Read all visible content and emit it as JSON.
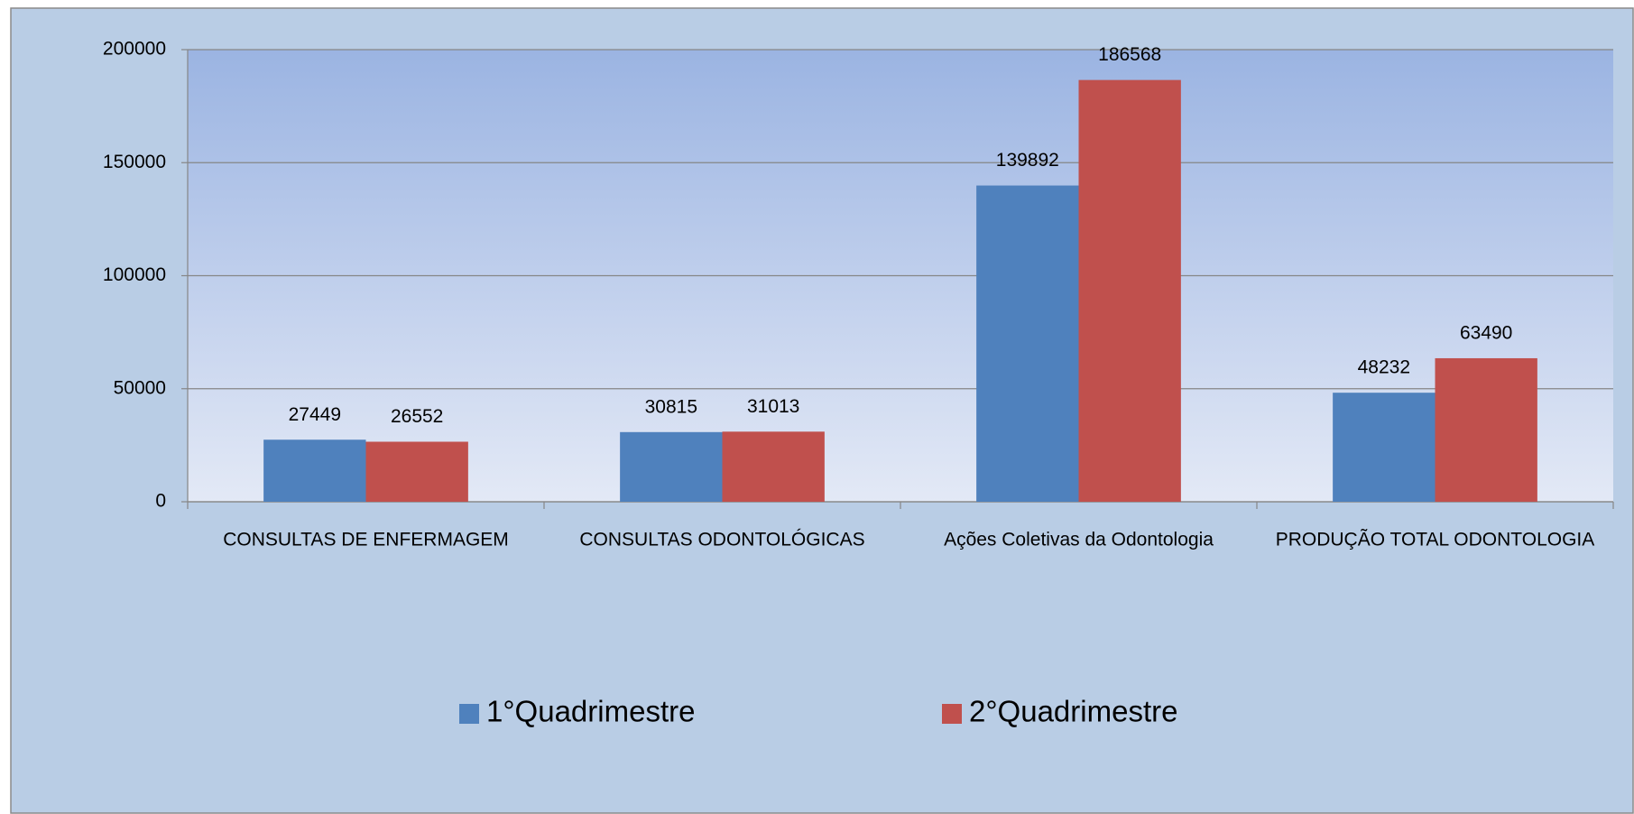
{
  "chart_data": {
    "type": "bar",
    "categories": [
      "CONSULTAS DE ENFERMAGEM",
      "CONSULTAS ODONTOLÓGICAS",
      "Ações Coletivas da Odontologia",
      "PRODUÇÃO TOTAL ODONTOLOGIA"
    ],
    "series": [
      {
        "name": "1°Quadrimestre",
        "color": "#4f81bd",
        "values": [
          27449,
          30815,
          139892,
          48232
        ]
      },
      {
        "name": "2°Quadrimestre",
        "color": "#c0504d",
        "values": [
          26552,
          31013,
          186568,
          63490
        ]
      }
    ],
    "ylim": [
      0,
      200000
    ],
    "yticks": [
      0,
      50000,
      100000,
      150000,
      200000
    ],
    "grid": true,
    "legend": "bottom"
  }
}
